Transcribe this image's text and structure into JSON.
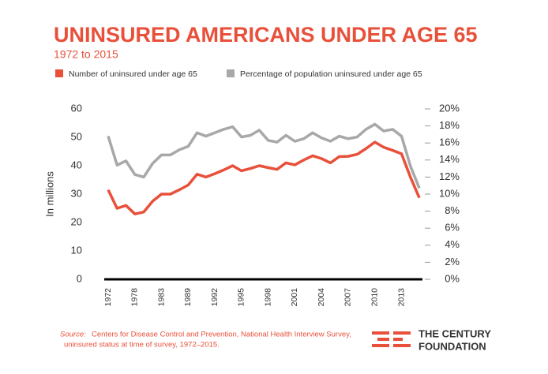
{
  "chart_data": {
    "type": "line",
    "title": "UNINSURED AMERICANS UNDER AGE 65",
    "subtitle": "1972 to 2015",
    "y_label": "In millions",
    "source_label": "Source:",
    "source": "Centers for Disease Control and Prevention, National Health Interview Survey,",
    "source_2": "uninsured status at time of survey, 1972–2015.",
    "logo": [
      "THE CENTURY",
      "FOUNDATION"
    ],
    "categories": [
      "1972",
      null,
      null,
      "1978",
      null,
      null,
      "1983",
      null,
      null,
      "1989",
      null,
      null,
      "1992",
      null,
      null,
      "1995",
      null,
      null,
      "1998",
      null,
      null,
      "2001",
      null,
      null,
      "2004",
      null,
      null,
      "2007",
      null,
      null,
      "2010",
      null,
      null,
      "2013",
      null,
      null
    ],
    "series": [
      {
        "name": "Number of uninsured under age 65",
        "color": "#e8503a",
        "values": [
          31.5,
          25,
          26,
          23,
          23.7,
          27.5,
          30,
          30,
          31.5,
          33.2,
          37,
          36,
          37.2,
          38.5,
          40,
          38.2,
          39,
          40,
          39.3,
          38.7,
          41,
          40.3,
          42,
          43.5,
          42.5,
          41,
          43.2,
          43.3,
          44,
          46,
          48.3,
          46.5,
          45.4,
          44.2,
          36,
          28.7
        ]
      },
      {
        "name": "Percentage of population uninsured under age 65",
        "color": "#a8a8a8",
        "axis": "y2",
        "values": [
          16.8,
          13.4,
          13.9,
          12.3,
          12.0,
          13.6,
          14.6,
          14.6,
          15.2,
          15.6,
          17.2,
          16.8,
          17.2,
          17.6,
          17.9,
          16.7,
          16.9,
          17.5,
          16.3,
          16.1,
          16.9,
          16.2,
          16.5,
          17.2,
          16.6,
          16.2,
          16.8,
          16.5,
          16.7,
          17.6,
          18.2,
          17.4,
          17.6,
          16.8,
          13.3,
          10.7
        ]
      }
    ],
    "ylim": [
      0,
      60
    ],
    "yticks": [
      0,
      10,
      20,
      30,
      40,
      50,
      60
    ],
    "y2lim": [
      0,
      20
    ],
    "y2ticks": [
      {
        "value": 0,
        "label": "0%"
      },
      {
        "value": 2,
        "label": "2%"
      },
      {
        "value": 4,
        "label": "4%"
      },
      {
        "value": 6,
        "label": "6%"
      },
      {
        "value": 8,
        "label": "8%"
      },
      {
        "value": 10,
        "label": "10%"
      },
      {
        "value": 12,
        "label": "12%"
      },
      {
        "value": 14,
        "label": "14%"
      },
      {
        "value": 16,
        "label": "16%"
      },
      {
        "value": 18,
        "label": "18%"
      },
      {
        "value": 20,
        "label": "20%"
      }
    ],
    "grid": false
  }
}
